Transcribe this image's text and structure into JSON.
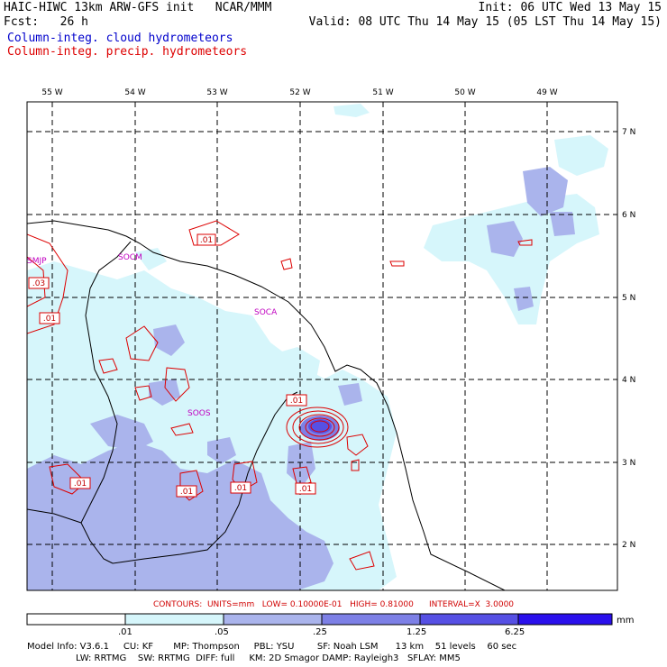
{
  "header": {
    "title": "HAIC-HIWC 13km ARW-GFS init   NCAR/MMM",
    "fcst": "Fcst:   26 h",
    "init": "Init: 06 UTC Wed 13 May 15",
    "valid": "Valid: 08 UTC Thu 14 May 15 (05 LST Thu 14 May 15)",
    "legend_cloud": "Column-integ. cloud hydrometeors",
    "legend_precip": "Column-integ. precip. hydrometeors",
    "cloud_color": "#0000cc",
    "precip_color": "#dd0000"
  },
  "map": {
    "lon_labels": [
      "55 W",
      "54 W",
      "53 W",
      "52 W",
      "51 W",
      "50 W",
      "49 W"
    ],
    "lat_labels": [
      "7 N",
      "6 N",
      "5 N",
      "4 N",
      "3 N",
      "2 N"
    ],
    "sites": [
      "SMJP",
      "SOCM",
      "SOCA",
      "SOOS"
    ],
    "contour_labels": [
      ".01",
      ".03",
      ".01",
      ".01",
      ".01",
      ".01",
      ".01",
      ".01"
    ]
  },
  "contours_info": "CONTOURS:  UNITS=mm   LOW= 0.10000E-01   HIGH= 0.81000      INTERVAL=X  3.0000",
  "colorbar": {
    "labels": [
      ".01",
      ".05",
      ".25",
      "1.25",
      "6.25",
      "mm"
    ],
    "colors": [
      "#ffffff",
      "#d6f6fb",
      "#aab4ec",
      "#7d80e6",
      "#5650e4",
      "#2a10ec"
    ]
  },
  "footer": {
    "line1": "Model Info: V3.6.1     CU: KF       MP: Thompson     PBL: YSU        SF: Noah LSM      13 km    51 levels    60 sec",
    "line2": "                 LW: RRTMG    SW: RRTMG  DIFF: full     KM: 2D Smagor DAMP: Rayleigh3   SFLAY: MM5"
  }
}
